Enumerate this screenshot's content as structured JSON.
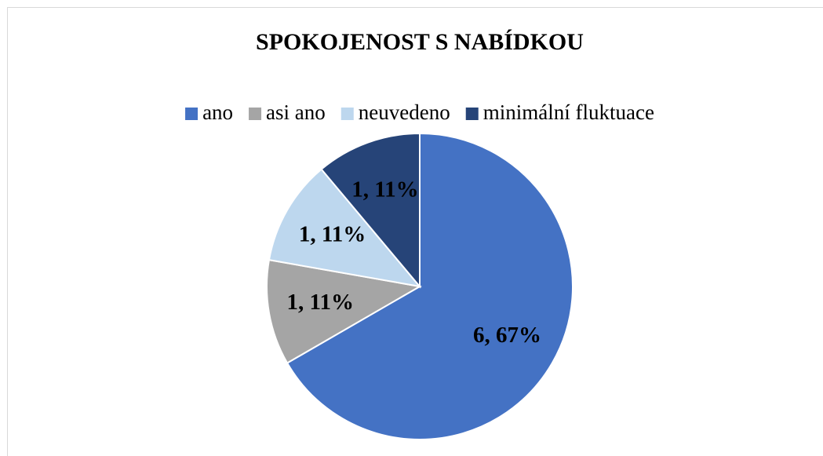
{
  "chart_data": {
    "type": "pie",
    "title": "SPOKOJENOST S NABÍDKOU",
    "categories": [
      "ano",
      "asi ano",
      "neuvedeno",
      "minimální fluktuace"
    ],
    "values": [
      6,
      1,
      1,
      1
    ],
    "value_labels": [
      "6, 67%",
      "1, 11%",
      "1, 11%",
      "1, 11%"
    ],
    "colors": [
      "#4472c4",
      "#a5a5a5",
      "#bdd7ee",
      "#264478"
    ],
    "legend": "top"
  }
}
